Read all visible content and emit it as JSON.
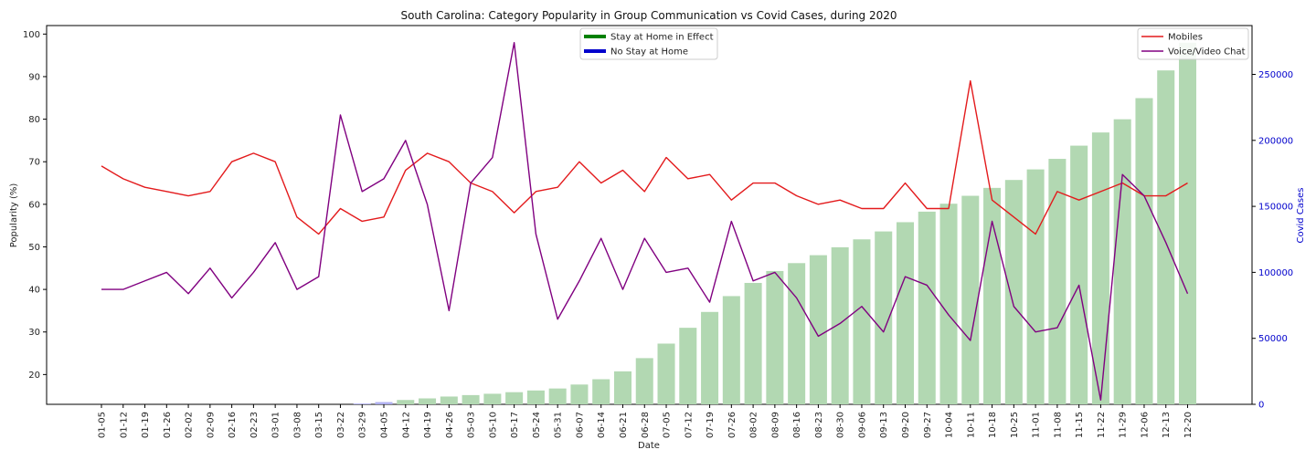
{
  "chart_data": {
    "type": "line+bar",
    "title": "South Carolina: Category Popularity in Group Communication vs Covid Cases, during 2020",
    "xlabel": "Date",
    "ylabel": "Popularity (%)",
    "y2label": "Covid Cases",
    "ylim": [
      13,
      102
    ],
    "y_ticks": [
      20,
      30,
      40,
      50,
      60,
      70,
      80,
      90,
      100
    ],
    "y2lim": [
      0,
      287000
    ],
    "y2_ticks": [
      0,
      50000,
      100000,
      150000,
      200000,
      250000
    ],
    "categories": [
      "01-05",
      "01-12",
      "01-19",
      "01-26",
      "02-02",
      "02-09",
      "02-16",
      "02-23",
      "03-01",
      "03-08",
      "03-15",
      "03-22",
      "03-29",
      "04-05",
      "04-12",
      "04-19",
      "04-26",
      "05-03",
      "05-10",
      "05-17",
      "05-24",
      "05-31",
      "06-07",
      "06-14",
      "06-21",
      "06-28",
      "07-05",
      "07-12",
      "07-19",
      "07-26",
      "08-02",
      "08-09",
      "08-16",
      "08-23",
      "08-30",
      "09-06",
      "09-13",
      "09-20",
      "09-27",
      "10-04",
      "10-11",
      "10-18",
      "10-25",
      "11-01",
      "11-08",
      "11-15",
      "11-22",
      "11-29",
      "12-06",
      "12-13",
      "12-20"
    ],
    "series": [
      {
        "name": "Mobiles",
        "color": "#e31a1c",
        "values": [
          69,
          66,
          64,
          63,
          62,
          63,
          70,
          72,
          70,
          57,
          53,
          59,
          56,
          57,
          68,
          72,
          70,
          65,
          63,
          58,
          63,
          64,
          70,
          65,
          68,
          63,
          71,
          66,
          67,
          61,
          65,
          65,
          62,
          60,
          61,
          59,
          59,
          65,
          59,
          59,
          89,
          61,
          57,
          53,
          63,
          61,
          63,
          65,
          62,
          62,
          65
        ]
      },
      {
        "name": "Voice/Video Chat",
        "color": "#800080",
        "values": [
          40,
          40,
          42,
          44,
          39,
          45,
          38,
          44,
          51,
          40,
          43,
          81,
          63,
          66,
          75,
          60,
          35,
          65,
          71,
          98,
          53,
          33,
          42,
          52,
          40,
          52,
          44,
          45,
          37,
          56,
          42,
          44,
          38,
          29,
          32,
          36,
          30,
          43,
          41,
          34,
          28,
          56,
          36,
          30,
          31,
          41,
          14,
          67,
          62,
          51,
          39
        ]
      }
    ],
    "bars": {
      "name": "Covid Cases",
      "values": [
        0,
        0,
        0,
        0,
        0,
        0,
        0,
        0,
        0,
        0,
        0,
        0,
        600,
        1700,
        3300,
        4500,
        5900,
        7000,
        8000,
        9200,
        10500,
        12000,
        15000,
        19000,
        25000,
        35000,
        46000,
        58000,
        70000,
        82000,
        92000,
        101000,
        107000,
        113000,
        119000,
        125000,
        131000,
        138000,
        146000,
        152000,
        158000,
        164000,
        170000,
        178000,
        186000,
        196000,
        206000,
        216000,
        232000,
        253000,
        274000
      ],
      "colors": {
        "stay_at_home": "#b2d8b2",
        "no_stay_at_home": "#b0b0f0"
      },
      "stay_at_home_flags": [
        1,
        1,
        1,
        1,
        1,
        1,
        1,
        1,
        1,
        1,
        1,
        1,
        0,
        0,
        1,
        1,
        1,
        1,
        1,
        1,
        1,
        1,
        1,
        1,
        1,
        1,
        1,
        1,
        1,
        1,
        1,
        1,
        1,
        1,
        1,
        1,
        1,
        1,
        1,
        1,
        1,
        1,
        1,
        1,
        1,
        1,
        1,
        1,
        1,
        1,
        1
      ]
    },
    "legend_left": {
      "placement": "top-center",
      "entries": [
        {
          "label": "Stay at Home in Effect",
          "color": "#008000"
        },
        {
          "label": "No Stay at Home",
          "color": "#0000cc"
        }
      ]
    },
    "legend_right": {
      "placement": "top-right",
      "entries": [
        {
          "label": "Mobiles",
          "color": "#e31a1c"
        },
        {
          "label": "Voice/Video Chat",
          "color": "#800080"
        }
      ]
    },
    "grid": false,
    "y2_tick_color": "#0000cc"
  }
}
